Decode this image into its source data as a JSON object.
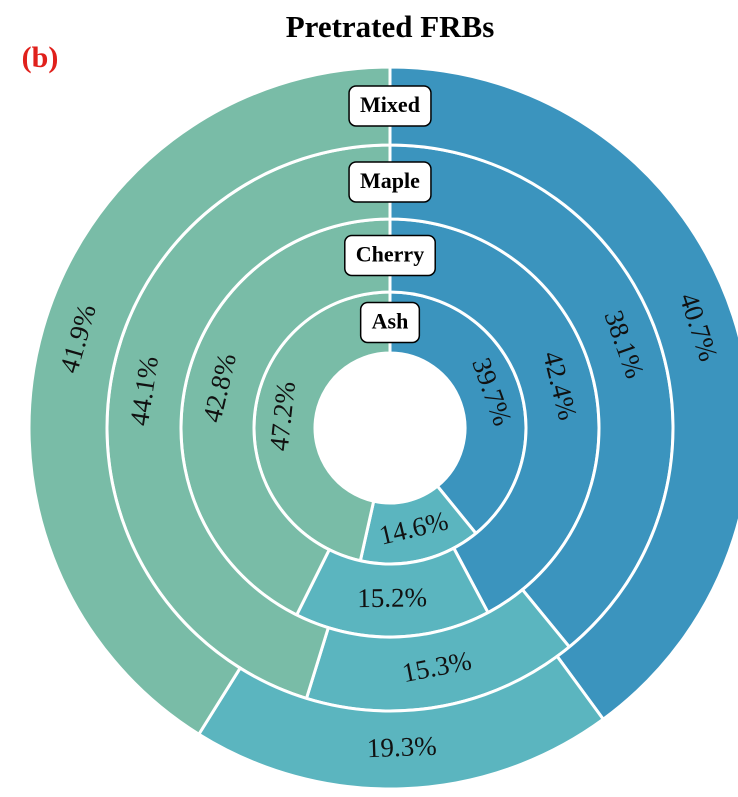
{
  "chart_data": {
    "type": "nested-donut",
    "title": "Pretrated FRBs",
    "panel_label": "(b)",
    "colors": [
      "#3b94be",
      "#5bb5bf",
      "#79bca7"
    ],
    "rings": [
      {
        "name": "Ash",
        "values": [
          39.7,
          14.6,
          47.2
        ],
        "value_labels": [
          "39.7%",
          "14.6%",
          "47.2%"
        ]
      },
      {
        "name": "Cherry",
        "values": [
          42.4,
          15.2,
          42.8
        ],
        "value_labels": [
          "42.4%",
          "15.2%",
          "42.8%"
        ]
      },
      {
        "name": "Maple",
        "values": [
          38.1,
          15.3,
          44.1
        ],
        "value_labels": [
          "38.1%",
          "15.3%",
          "44.1%"
        ]
      },
      {
        "name": "Mixed",
        "values": [
          40.7,
          19.3,
          41.9
        ],
        "value_labels": [
          "40.7%",
          "19.3%",
          "41.9%"
        ]
      }
    ]
  }
}
